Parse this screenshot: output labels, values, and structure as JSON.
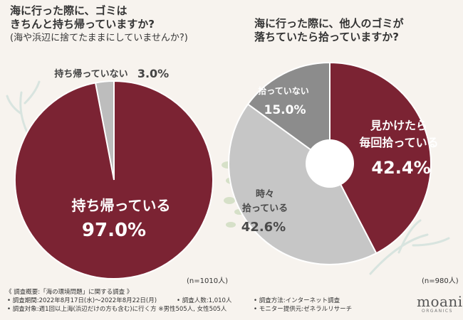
{
  "titles": {
    "left_line1": "海に行った際に、ゴミは",
    "left_line2": "きちんと持ち帰っていますか?",
    "left_line3": "(海や浜辺に捨てたままにしていませんか?)",
    "right_line1": "海に行った際に、他人のゴミが",
    "right_line2": "落ちていたら拾っていますか?"
  },
  "chart_data": [
    {
      "type": "pie",
      "title": "海に行った際に、ゴミはきちんと持ち帰っていますか?(海や浜辺に捨てたままにしていませんか?)",
      "slices": [
        {
          "label": "持ち帰っている",
          "value": 97.0,
          "display": "97.0%",
          "color": "#7b2333"
        },
        {
          "label": "持ち帰っていない",
          "value": 3.0,
          "display": "3.0%",
          "color": "#bdbdbd"
        }
      ],
      "n": "(n=1010人)"
    },
    {
      "type": "pie",
      "title": "海に行った際に、他人のゴミが落ちていたら拾っていますか?",
      "donut": true,
      "slices": [
        {
          "label": "見かけたら毎回拾っている",
          "label_lines": [
            "見かけたら",
            "毎回拾っている"
          ],
          "value": 42.4,
          "display": "42.4%",
          "color": "#7b2333"
        },
        {
          "label": "時々拾っている",
          "label_lines": [
            "時々",
            "拾っている"
          ],
          "value": 42.6,
          "display": "42.6%",
          "color": "#c6c6c6"
        },
        {
          "label": "拾っていない",
          "label_lines": [
            "拾っていない"
          ],
          "value": 15.0,
          "display": "15.0%",
          "color": "#8c8c8c"
        }
      ],
      "n": "(n=980人)"
    }
  ],
  "survey": {
    "heading": "《 調査概要:「海の環境問題」に関する調査 》",
    "period": "• 調査期間:2022年8月17日(水)〜2022年8月22日(月)",
    "count": "• 調査人数:1,010人",
    "method": "• 調査方法:インターネット調査",
    "target": "• 調査対象:週1回以上海(浜辺だけの方も含む)に行く方 ※男性505人, 女性505人",
    "provider": "• モニター提供元:ゼネラルリサーチ"
  },
  "brand": {
    "name": "moani",
    "sub": "ORGANICS"
  }
}
